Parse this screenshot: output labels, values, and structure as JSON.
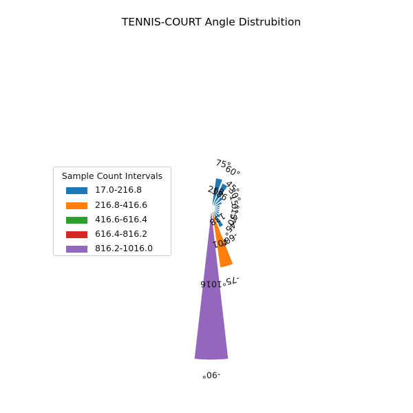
{
  "chart_data": {
    "type": "bar",
    "projection": "polar-half",
    "title": "TENNIS-COURT Angle Distrubition",
    "categories": [
      "75°",
      "60°",
      "45°",
      "30°",
      "15°",
      "0°",
      "-15°",
      "-30°",
      "-45°",
      "-60°",
      "-75°",
      "-90°"
    ],
    "angles_deg": [
      75,
      60,
      45,
      30,
      15,
      0,
      -15,
      -30,
      -45,
      -60,
      -75,
      -90
    ],
    "values": [
      208,
      186,
      100,
      80,
      60,
      50,
      46,
      60,
      80,
      138,
      401,
      1016
    ],
    "value_labels": [
      "208",
      "186",
      "",
      "",
      "",
      "",
      "",
      "",
      "",
      "138",
      "401",
      "1016"
    ],
    "colors": [
      "#1f77b4",
      "#1f77b4",
      "#1f77b4",
      "#1f77b4",
      "#1f77b4",
      "#1f77b4",
      "#1f77b4",
      "#1f77b4",
      "#1f77b4",
      "#1f77b4",
      "#ff7f0e",
      "#9467bd"
    ],
    "legend": {
      "title": "Sample Count Intervals",
      "placement": "center-left",
      "items": [
        {
          "label": "17.0-216.8",
          "color": "#1f77b4"
        },
        {
          "label": "216.8-416.6",
          "color": "#ff7f0e"
        },
        {
          "label": "416.6-616.4",
          "color": "#2ca02c"
        },
        {
          "label": "616.4-816.2",
          "color": "#d62728"
        },
        {
          "label": "816.2-1016.0",
          "color": "#9467bd"
        }
      ]
    },
    "grid": false
  }
}
